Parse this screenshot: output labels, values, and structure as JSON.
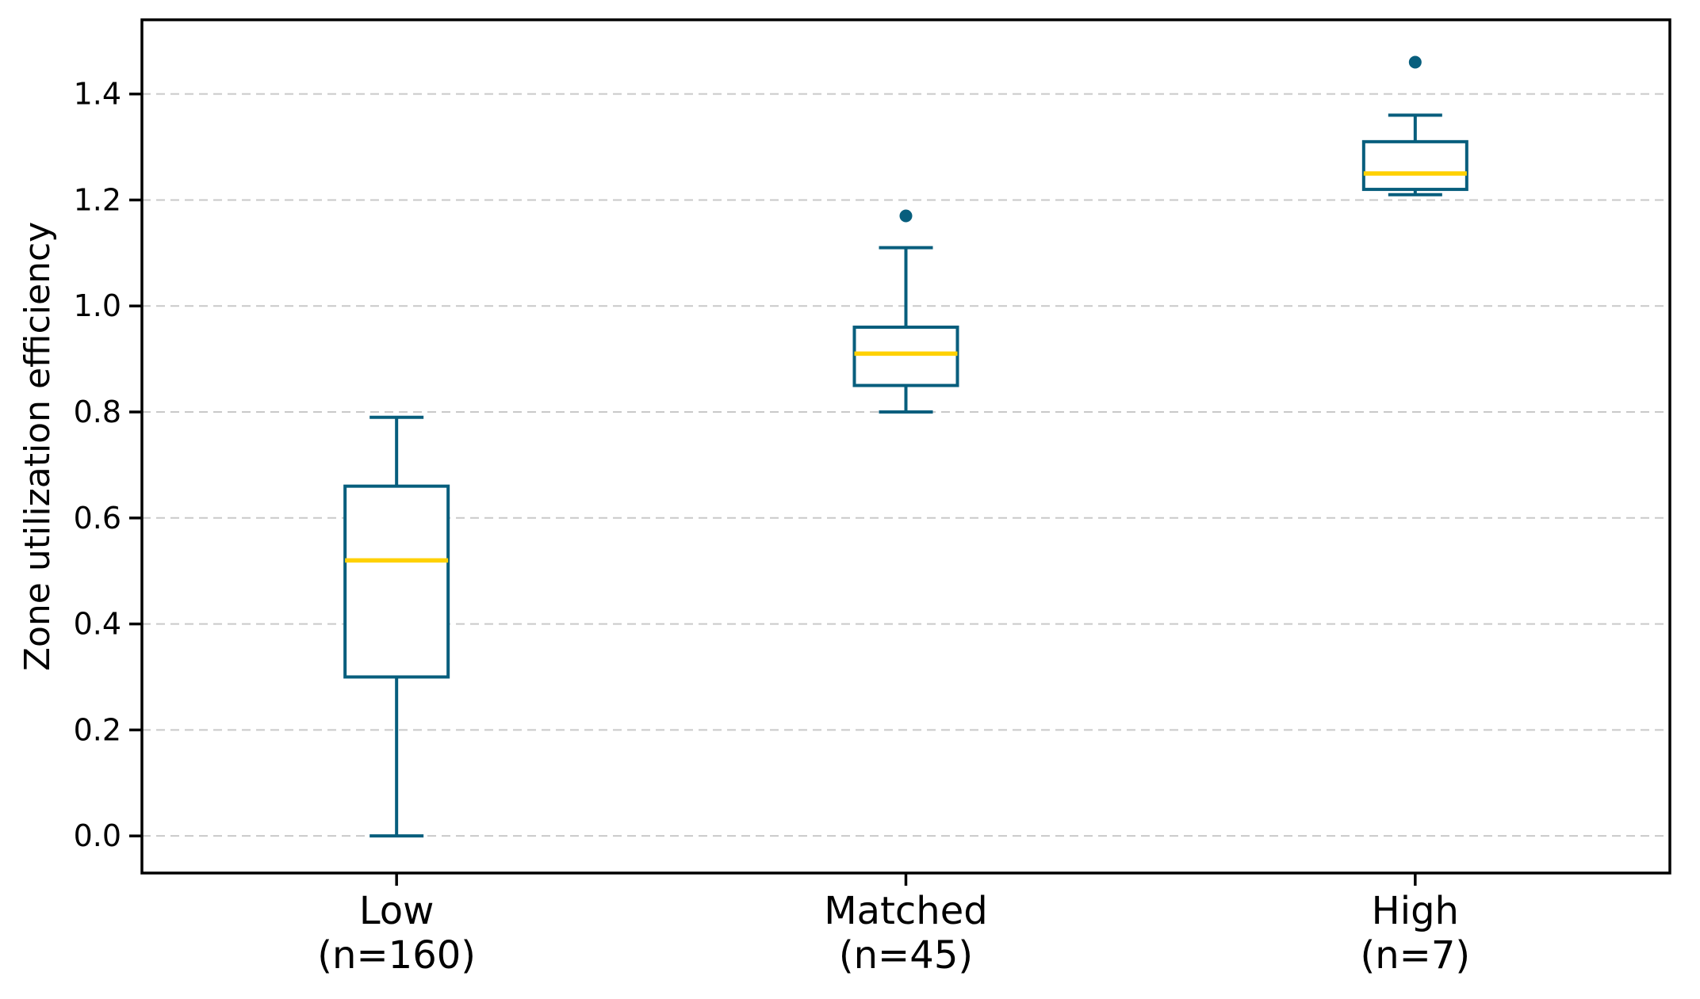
{
  "chart_data": {
    "type": "boxplot",
    "title": "",
    "xlabel": "",
    "ylabel": "Zone utilization efficiency",
    "ylim": [
      -0.07,
      1.54
    ],
    "xlim": [
      0.5,
      3.5
    ],
    "yticks": [
      {
        "value": 0.0,
        "label": "0.0"
      },
      {
        "value": 0.2,
        "label": "0.2"
      },
      {
        "value": 0.4,
        "label": "0.4"
      },
      {
        "value": 0.6,
        "label": "0.6"
      },
      {
        "value": 0.8,
        "label": "0.8"
      },
      {
        "value": 1.0,
        "label": "1.0"
      },
      {
        "value": 1.2,
        "label": "1.2"
      },
      {
        "value": 1.4,
        "label": "1.4"
      }
    ],
    "grid": {
      "axis": "y",
      "style": "dashed",
      "on": true
    },
    "legend": {
      "visible": false
    },
    "categories": [
      {
        "label": "Low",
        "sublabel": "(n=160)",
        "n": 160,
        "position": 1
      },
      {
        "label": "Matched",
        "sublabel": "(n=45)",
        "n": 45,
        "position": 2
      },
      {
        "label": "High",
        "sublabel": "(n=7)",
        "n": 7,
        "position": 3
      }
    ],
    "series": [
      {
        "name": "Low (n=160)",
        "whisker_low": 0.0,
        "q1": 0.3,
        "median": 0.52,
        "q3": 0.66,
        "whisker_high": 0.79,
        "outliers": []
      },
      {
        "name": "Matched (n=45)",
        "whisker_low": 0.8,
        "q1": 0.85,
        "median": 0.91,
        "q3": 0.96,
        "whisker_high": 1.11,
        "outliers": [
          1.17
        ]
      },
      {
        "name": "High (n=7)",
        "whisker_low": 1.21,
        "q1": 1.22,
        "median": 1.25,
        "q3": 1.31,
        "whisker_high": 1.36,
        "outliers": [
          1.46
        ]
      }
    ],
    "colors": {
      "box_edge": "#075e7d",
      "box_fill": "#ffffff",
      "median": "#ffd103",
      "outlier": "#075e7d",
      "grid": "#c9c9c9",
      "axis": "#000000",
      "background": "#ffffff"
    }
  }
}
